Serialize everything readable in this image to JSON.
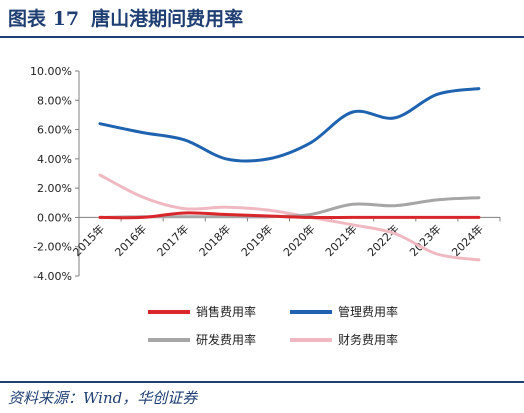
{
  "header": {
    "figure_label": "图表 17",
    "title": "唐山港期间费用率"
  },
  "footer": {
    "source": "资料来源：Wind，华创证券"
  },
  "chart_data": {
    "type": "line",
    "x": [
      "2015年",
      "2016年",
      "2017年",
      "2018年",
      "2019年",
      "2020年",
      "2021年",
      "2022年",
      "2023年",
      "2024年"
    ],
    "y_ticks": [
      "10.00%",
      "8.00%",
      "6.00%",
      "4.00%",
      "2.00%",
      "0.00%",
      "-2.00%",
      "-4.00%"
    ],
    "ylim": [
      -4,
      10
    ],
    "y_unit": "%",
    "grid": false,
    "legend_position": "bottom",
    "series": [
      {
        "name": "销售费用率",
        "color": "#d9262b",
        "values": [
          0.0,
          0.0,
          0.3,
          0.2,
          0.1,
          0.0,
          0.0,
          0.0,
          0.0,
          0.0
        ]
      },
      {
        "name": "管理费用率",
        "color": "#1f63b0",
        "values": [
          6.4,
          5.8,
          5.3,
          4.0,
          4.0,
          5.1,
          7.2,
          6.8,
          8.4,
          8.8
        ]
      },
      {
        "name": "研发费用率",
        "color": "#a6a6a6",
        "values": [
          0.0,
          0.05,
          0.05,
          0.05,
          0.05,
          0.2,
          0.9,
          0.8,
          1.2,
          1.35
        ]
      },
      {
        "name": "财务费用率",
        "color": "#f0b9c2",
        "values": [
          2.9,
          1.4,
          0.6,
          0.7,
          0.5,
          0.0,
          -0.5,
          -1.1,
          -2.5,
          -2.9
        ]
      }
    ]
  }
}
